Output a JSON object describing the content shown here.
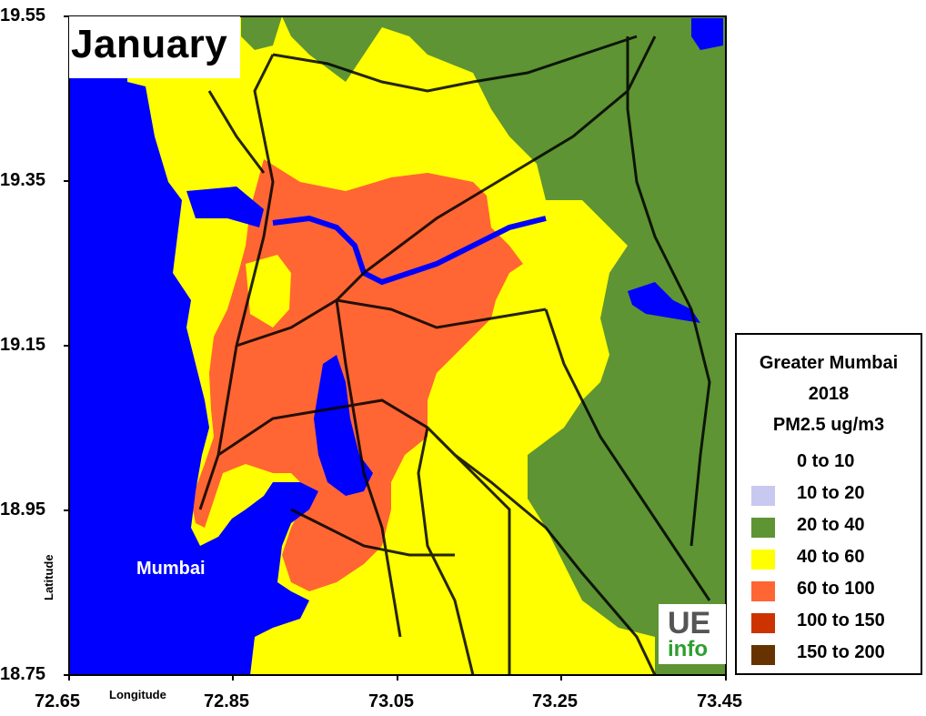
{
  "map": {
    "month": "January",
    "city_label": "Mumbai",
    "x_axis_title": "Longitude",
    "y_axis_title": "Latitude",
    "x_ticks": [
      "72.65",
      "72.85",
      "73.05",
      "73.25",
      "73.45"
    ],
    "y_ticks": [
      "19.55",
      "19.35",
      "19.15",
      "18.95",
      "18.75"
    ],
    "lon_range": [
      72.65,
      73.45
    ],
    "lat_range": [
      18.75,
      19.55
    ]
  },
  "legend": {
    "title_line1": "Greater Mumbai",
    "title_line2": "2018",
    "title_line3": "PM2.5 ug/m3",
    "items": [
      {
        "label": "0  to  10",
        "color": "#ffffff"
      },
      {
        "label": "10  to  20",
        "color": "#c8c8f0"
      },
      {
        "label": "20  to  40",
        "color": "#5e9433"
      },
      {
        "label": "40  to  60",
        "color": "#ffff00"
      },
      {
        "label": "60  to  100",
        "color": "#ff6633"
      },
      {
        "label": "100  to  150",
        "color": "#cc3300"
      },
      {
        "label": "150  to  200",
        "color": "#663300"
      }
    ]
  },
  "logo": {
    "line1": "UE",
    "line2": "info"
  },
  "colors": {
    "water": "#0000ff",
    "green": "#5e9433",
    "yellow": "#ffff00",
    "orange": "#ff6633",
    "roads": "#000000"
  }
}
